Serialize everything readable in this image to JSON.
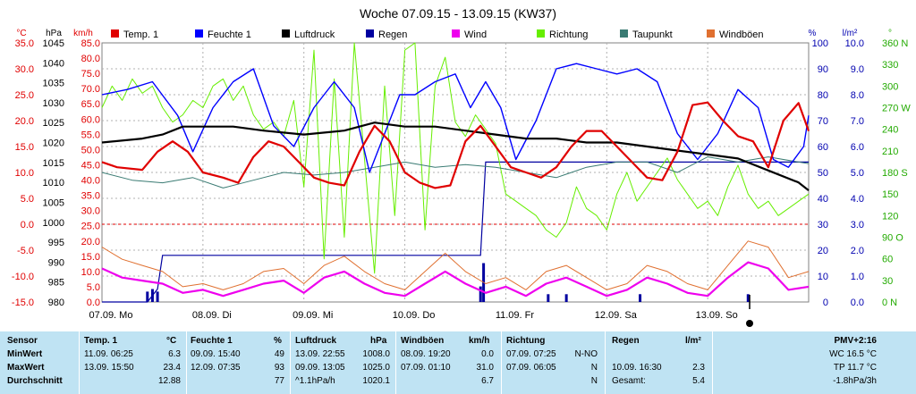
{
  "chart_data": {
    "type": "line",
    "title": "Woche 07.09.15 - 13.09.15 (KW37)",
    "axes_left": {
      "temp": {
        "unit": "°C",
        "min": -15,
        "max": 35,
        "ticks": [
          "35.0",
          "30.0",
          "25.0",
          "20.0",
          "15.0",
          "10.0",
          "5.0",
          "0.0",
          "-5.0",
          "-10.0",
          "-15.0"
        ]
      },
      "pressure": {
        "unit": "hPa",
        "min": 980,
        "max": 1045,
        "ticks": [
          "1045",
          "1040",
          "1035",
          "1030",
          "1025",
          "1020",
          "1015",
          "1010",
          "1005",
          "1000",
          "995",
          "990",
          "985",
          "980"
        ]
      },
      "wind": {
        "unit": "km/h",
        "min": 0,
        "max": 85,
        "ticks": [
          "85.0",
          "80.0",
          "75.0",
          "70.0",
          "65.0",
          "60.0",
          "55.0",
          "50.0",
          "45.0",
          "40.0",
          "35.0",
          "30.0",
          "25.0",
          "20.0",
          "15.0",
          "10.0",
          "5.0",
          "0.0"
        ]
      }
    },
    "axes_right": {
      "humidity": {
        "unit": "%",
        "min": 0,
        "max": 100,
        "ticks": [
          "100",
          "90",
          "80",
          "70",
          "60",
          "50",
          "40",
          "30",
          "20",
          "10",
          "0"
        ]
      },
      "rain": {
        "unit": "l/m²",
        "min": 0,
        "max": 10,
        "ticks": [
          "10.0",
          "9.0",
          "8.0",
          "7.0",
          "6.0",
          "5.0",
          "4.0",
          "3.0",
          "2.0",
          "1.0",
          "0.0"
        ]
      },
      "direction": {
        "unit": "°",
        "min": 0,
        "max": 360,
        "ticks": [
          "360 N",
          "330",
          "300",
          "270 W",
          "240",
          "210",
          "180 S",
          "150",
          "120",
          "90 O",
          "60",
          "30",
          "0 N"
        ]
      }
    },
    "x_labels": [
      "07.09.  Mo",
      "08.09.  Di",
      "09.09.  Mi",
      "10.09.  Do",
      "11.09.  Fr",
      "12.09.  Sa",
      "13.09.  So"
    ],
    "legend": [
      "Temp. 1",
      "Feuchte 1",
      "Luftdruck",
      "Regen",
      "Wind",
      "Richtung",
      "Taupunkt",
      "Windböen"
    ],
    "series": [
      {
        "name": "Temp. 1",
        "axis": "temp",
        "color": "#e00000",
        "x": [
          0,
          0.15,
          0.4,
          0.55,
          0.7,
          0.85,
          1,
          1.2,
          1.35,
          1.5,
          1.65,
          1.8,
          1.95,
          2.1,
          2.25,
          2.4,
          2.55,
          2.7,
          2.85,
          3,
          3.15,
          3.3,
          3.45,
          3.6,
          3.75,
          3.9,
          4.05,
          4.2,
          4.35,
          4.5,
          4.65,
          4.8,
          4.95,
          5.1,
          5.25,
          5.4,
          5.55,
          5.7,
          5.85,
          6,
          6.15,
          6.3,
          6.45,
          6.6,
          6.75,
          6.9,
          7
        ],
        "y": [
          12,
          11,
          10.5,
          14,
          16,
          14,
          10,
          9,
          8,
          13,
          16,
          15,
          12,
          9,
          8,
          7.5,
          14,
          19,
          16,
          10,
          8,
          7,
          7.5,
          16,
          19,
          15,
          11,
          10,
          9,
          11,
          15,
          18,
          18,
          15,
          12,
          9,
          8.5,
          14,
          23,
          23.5,
          20,
          17,
          16,
          11,
          20,
          23.4,
          18
        ]
      },
      {
        "name": "Taupunkt",
        "axis": "temp",
        "color": "#3a7b73",
        "x": [
          0,
          0.3,
          0.6,
          0.9,
          1.2,
          1.5,
          1.8,
          2.1,
          2.4,
          2.7,
          3,
          3.3,
          3.6,
          3.9,
          4.2,
          4.5,
          4.8,
          5.1,
          5.4,
          5.7,
          6,
          6.3,
          6.6,
          6.9,
          7
        ],
        "y": [
          10,
          8.5,
          8,
          9,
          7,
          8.5,
          10,
          9.5,
          10,
          11,
          12,
          11,
          11.5,
          11,
          10,
          9,
          11,
          12,
          12,
          10,
          13,
          12,
          13,
          12,
          11.7
        ]
      },
      {
        "name": "Windböen",
        "axis": "wind",
        "color": "#e07030",
        "x": [
          0,
          0.2,
          0.4,
          0.6,
          0.8,
          1,
          1.2,
          1.4,
          1.6,
          1.8,
          2,
          2.2,
          2.4,
          2.6,
          2.8,
          3,
          3.2,
          3.4,
          3.6,
          3.8,
          4,
          4.2,
          4.4,
          4.6,
          4.8,
          5,
          5.2,
          5.4,
          5.6,
          5.8,
          6,
          6.2,
          6.4,
          6.6,
          6.8,
          7
        ],
        "y": [
          18,
          14,
          12,
          10,
          5,
          6,
          4,
          6,
          10,
          11,
          6,
          12,
          15,
          10,
          6,
          4,
          10,
          16,
          10,
          6,
          8,
          4,
          10,
          12,
          8,
          4,
          6,
          12,
          10,
          6,
          4,
          12,
          20,
          18,
          8,
          10
        ]
      },
      {
        "name": "Wind",
        "axis": "wind",
        "color": "#ee00ee",
        "x": [
          0,
          0.2,
          0.4,
          0.6,
          0.8,
          1,
          1.2,
          1.4,
          1.6,
          1.8,
          2,
          2.2,
          2.4,
          2.6,
          2.8,
          3,
          3.2,
          3.4,
          3.6,
          3.8,
          4,
          4.2,
          4.4,
          4.6,
          4.8,
          5,
          5.2,
          5.4,
          5.6,
          5.8,
          6,
          6.2,
          6.4,
          6.6,
          6.8,
          7
        ],
        "y": [
          11,
          8,
          7,
          6,
          3,
          4,
          2,
          4,
          6,
          7,
          3,
          8,
          10,
          6,
          3,
          2,
          6,
          10,
          6,
          3,
          5,
          2,
          6,
          8,
          5,
          2,
          4,
          8,
          6,
          3,
          2,
          8,
          13,
          11,
          4,
          5
        ]
      },
      {
        "name": "Feuchte 1",
        "axis": "humidity",
        "color": "#0000ff",
        "x": [
          0,
          0.25,
          0.5,
          0.75,
          0.9,
          1.1,
          1.3,
          1.5,
          1.7,
          1.9,
          2.1,
          2.3,
          2.5,
          2.65,
          2.8,
          2.95,
          3.1,
          3.3,
          3.5,
          3.65,
          3.8,
          3.95,
          4.1,
          4.3,
          4.5,
          4.7,
          4.9,
          5.1,
          5.3,
          5.5,
          5.7,
          5.9,
          6.1,
          6.3,
          6.5,
          6.65,
          6.8,
          6.95,
          7
        ],
        "y": [
          80,
          82,
          85,
          72,
          58,
          75,
          85,
          90,
          68,
          60,
          75,
          85,
          75,
          50,
          65,
          80,
          80,
          85,
          88,
          75,
          85,
          75,
          55,
          70,
          90,
          92,
          90,
          88,
          90,
          85,
          65,
          55,
          65,
          82,
          75,
          55,
          52,
          60,
          72
        ]
      },
      {
        "name": "Luftdruck",
        "axis": "pressure",
        "color": "#000000",
        "x": [
          0,
          0.4,
          0.6,
          0.8,
          1,
          1.3,
          1.6,
          2,
          2.4,
          2.7,
          3,
          3.3,
          3.6,
          3.9,
          4.2,
          4.5,
          4.8,
          5.1,
          5.4,
          5.7,
          6,
          6.3,
          6.6,
          6.9,
          7
        ],
        "y": [
          1020,
          1021,
          1022,
          1024,
          1024,
          1024,
          1023,
          1022,
          1023,
          1025,
          1024,
          1024,
          1023,
          1022,
          1021,
          1021,
          1020,
          1020,
          1019,
          1018,
          1017,
          1016,
          1013,
          1010,
          1008
        ]
      },
      {
        "name": "Richtung",
        "axis": "direction",
        "color": "#66ee00",
        "x": [
          0,
          0.1,
          0.2,
          0.3,
          0.4,
          0.5,
          0.6,
          0.7,
          0.8,
          0.9,
          1,
          1.1,
          1.2,
          1.3,
          1.4,
          1.5,
          1.6,
          1.7,
          1.8,
          1.9,
          2,
          2.1,
          2.2,
          2.3,
          2.4,
          2.5,
          2.6,
          2.7,
          2.8,
          2.9,
          3,
          3.1,
          3.2,
          3.3,
          3.4,
          3.5,
          3.6,
          3.7,
          3.8,
          3.9,
          4,
          4.1,
          4.2,
          4.3,
          4.4,
          4.5,
          4.6,
          4.7,
          4.8,
          4.9,
          5,
          5.1,
          5.2,
          5.3,
          5.4,
          5.5,
          5.6,
          5.7,
          5.8,
          5.9,
          6,
          6.1,
          6.2,
          6.3,
          6.4,
          6.5,
          6.6,
          6.7,
          6.8,
          6.9,
          7
        ],
        "y": [
          270,
          300,
          280,
          310,
          290,
          300,
          270,
          250,
          260,
          280,
          270,
          300,
          310,
          280,
          300,
          260,
          240,
          250,
          230,
          280,
          160,
          350,
          60,
          310,
          90,
          360,
          200,
          40,
          300,
          120,
          350,
          360,
          100,
          300,
          340,
          250,
          230,
          260,
          240,
          220,
          150,
          140,
          130,
          120,
          100,
          90,
          110,
          160,
          130,
          120,
          100,
          150,
          180,
          140,
          160,
          180,
          200,
          170,
          150,
          130,
          140,
          120,
          160,
          190,
          150,
          130,
          140,
          120,
          130,
          140,
          150
        ]
      }
    ],
    "rain_bars": [
      {
        "x": 0.45,
        "h": 0.4
      },
      {
        "x": 0.5,
        "h": 0.5
      },
      {
        "x": 0.55,
        "h": 0.4
      },
      {
        "x": 3.75,
        "h": 0.6
      },
      {
        "x": 3.78,
        "h": 1.5
      },
      {
        "x": 4.42,
        "h": 0.3
      },
      {
        "x": 4.6,
        "h": 0.3
      },
      {
        "x": 5.33,
        "h": 0.3
      },
      {
        "x": 6.4,
        "h": 0.3
      }
    ],
    "rain_cumulative": {
      "x": [
        0,
        0.45,
        0.55,
        0.6,
        3.75,
        3.8,
        7
      ],
      "y": [
        0,
        0,
        0.5,
        1.8,
        1.8,
        5.4,
        5.4
      ]
    },
    "grid": true
  },
  "header": {
    "unit_temp": "°C",
    "unit_hpa": "hPa",
    "unit_kmh": "km/h",
    "unit_pct": "%",
    "unit_rain": "l/m²",
    "unit_deg": "°"
  },
  "stats": {
    "row_labels": [
      "Sensor",
      "MinWert",
      "MaxWert",
      "Durchschnitt"
    ],
    "temp": {
      "title": "Temp. 1",
      "unit": "°C",
      "min_time": "11.09.  06:25",
      "min_val": "6.3",
      "max_time": "13.09.  15:50",
      "max_val": "23.4",
      "avg": "12.88"
    },
    "hum": {
      "title": "Feuchte 1",
      "unit": "%",
      "min_time": "09.09.  15:40",
      "min_val": "49",
      "max_time": "12.09.  07:35",
      "max_val": "93",
      "avg": "77"
    },
    "press": {
      "title": "Luftdruck",
      "unit": "hPa",
      "min_time": "13.09.  22:55",
      "min_val": "1008.0",
      "max_time": "09.09.  13:05",
      "max_val": "1025.0",
      "avg_label": "^1.1hPa/h",
      "avg": "1020.1"
    },
    "gust": {
      "title": "Windböen",
      "unit": "km/h",
      "min_time": "08.09.  19:20",
      "min_val": "0.0",
      "max_time": "07.09.  01:10",
      "max_val": "31.0",
      "avg": "6.7"
    },
    "dir": {
      "title": "Richtung",
      "min_time": "07.09.  07:25",
      "min_val": "N-NO",
      "max_time": "07.09.  06:05",
      "max_val": "N",
      "avg": "N"
    },
    "rain": {
      "title": "Regen",
      "unit": "l/m²",
      "max_time": "10.09.  16:30",
      "max_val": "2.3",
      "total_label": "Gesamt:",
      "total": "5.4"
    },
    "pmv": {
      "title": "PMV+2:16",
      "wc": "WC 16.5 °C",
      "tp": "TP 11.7 °C",
      "trend": "-1.8hPa/3h"
    }
  }
}
